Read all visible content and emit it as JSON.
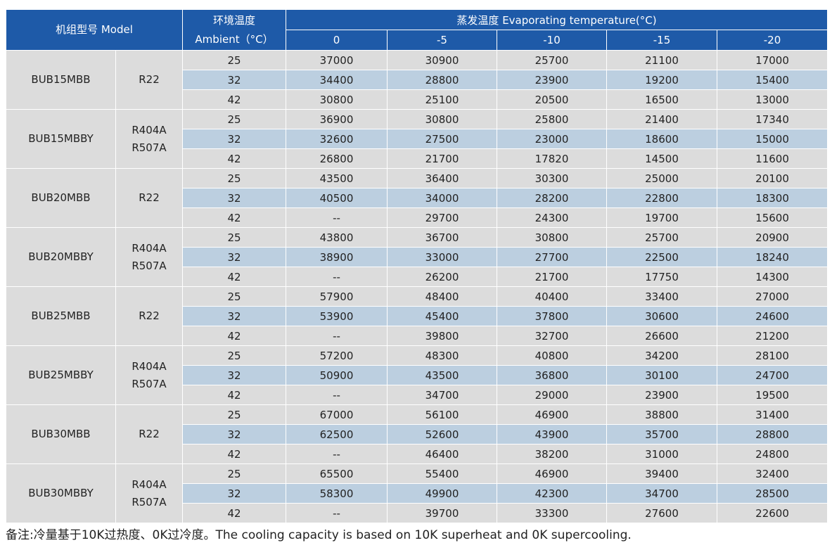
{
  "header": {
    "model": "机组型号 Model",
    "ambient_cn": "环境温度",
    "ambient_en": "Ambient（°C）",
    "evap": "蒸发温度 Evaporating temperature(°C)",
    "evap_temps": [
      "0",
      "-5",
      "-10",
      "-15",
      "-20"
    ]
  },
  "groups": [
    {
      "model": "BUB15MBB",
      "refrigerant": [
        "R22"
      ],
      "rows": [
        {
          "ambient": "25",
          "values": [
            "37000",
            "30900",
            "25700",
            "21100",
            "17000"
          ]
        },
        {
          "ambient": "32",
          "values": [
            "34400",
            "28800",
            "23900",
            "19200",
            "15400"
          ]
        },
        {
          "ambient": "42",
          "values": [
            "30800",
            "25100",
            "20500",
            "16500",
            "13000"
          ]
        }
      ]
    },
    {
      "model": "BUB15MBBY",
      "refrigerant": [
        "R404A",
        "R507A"
      ],
      "rows": [
        {
          "ambient": "25",
          "values": [
            "36900",
            "30800",
            "25800",
            "21400",
            "17340"
          ]
        },
        {
          "ambient": "32",
          "values": [
            "32600",
            "27500",
            "23000",
            "18600",
            "15000"
          ]
        },
        {
          "ambient": "42",
          "values": [
            "26800",
            "21700",
            "17820",
            "14500",
            "11600"
          ]
        }
      ]
    },
    {
      "model": "BUB20MBB",
      "refrigerant": [
        "R22"
      ],
      "rows": [
        {
          "ambient": "25",
          "values": [
            "43500",
            "36400",
            "30300",
            "25000",
            "20100"
          ]
        },
        {
          "ambient": "32",
          "values": [
            "40500",
            "34000",
            "28200",
            "22800",
            "18300"
          ]
        },
        {
          "ambient": "42",
          "values": [
            "--",
            "29700",
            "24300",
            "19700",
            "15600"
          ]
        }
      ]
    },
    {
      "model": "BUB20MBBY",
      "refrigerant": [
        "R404A",
        "R507A"
      ],
      "rows": [
        {
          "ambient": "25",
          "values": [
            "43800",
            "36700",
            "30800",
            "25700",
            "20900"
          ]
        },
        {
          "ambient": "32",
          "values": [
            "38900",
            "33000",
            "27700",
            "22500",
            "18240"
          ]
        },
        {
          "ambient": "42",
          "values": [
            "--",
            "26200",
            "21700",
            "17750",
            "14300"
          ]
        }
      ]
    },
    {
      "model": "BUB25MBB",
      "refrigerant": [
        "R22"
      ],
      "rows": [
        {
          "ambient": "25",
          "values": [
            "57900",
            "48400",
            "40400",
            "33400",
            "27000"
          ]
        },
        {
          "ambient": "32",
          "values": [
            "53900",
            "45400",
            "37800",
            "30600",
            "24600"
          ]
        },
        {
          "ambient": "42",
          "values": [
            "--",
            "39800",
            "32700",
            "26600",
            "21200"
          ]
        }
      ]
    },
    {
      "model": "BUB25MBBY",
      "refrigerant": [
        "R404A",
        "R507A"
      ],
      "rows": [
        {
          "ambient": "25",
          "values": [
            "57200",
            "48300",
            "40800",
            "34200",
            "28100"
          ]
        },
        {
          "ambient": "32",
          "values": [
            "50900",
            "43500",
            "36800",
            "30100",
            "24700"
          ]
        },
        {
          "ambient": "42",
          "values": [
            "--",
            "34700",
            "29000",
            "23900",
            "19500"
          ]
        }
      ]
    },
    {
      "model": "BUB30MBB",
      "refrigerant": [
        "R22"
      ],
      "rows": [
        {
          "ambient": "25",
          "values": [
            "67000",
            "56100",
            "46900",
            "38800",
            "31400"
          ]
        },
        {
          "ambient": "32",
          "values": [
            "62500",
            "52600",
            "43900",
            "35700",
            "28800"
          ]
        },
        {
          "ambient": "42",
          "values": [
            "--",
            "46400",
            "38200",
            "31000",
            "24800"
          ]
        }
      ]
    },
    {
      "model": "BUB30MBBY",
      "refrigerant": [
        "R404A",
        "R507A"
      ],
      "rows": [
        {
          "ambient": "25",
          "values": [
            "65500",
            "55400",
            "46900",
            "39400",
            "32400"
          ]
        },
        {
          "ambient": "32",
          "values": [
            "58300",
            "49900",
            "42300",
            "34700",
            "28500"
          ]
        },
        {
          "ambient": "42",
          "values": [
            "--",
            "39700",
            "33300",
            "27600",
            "22600"
          ]
        }
      ]
    }
  ],
  "note": "备注:冷量基于10K过热度、0K过冷度。The cooling capacity is based on 10K superheat and 0K supercooling."
}
